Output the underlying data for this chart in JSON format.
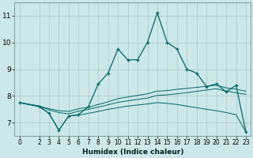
{
  "xlabel": "Humidex (Indice chaleur)",
  "bg_color": "#cce8e8",
  "grid_color": "#b0cccc",
  "line_color": "#006868",
  "xlim": [
    -0.5,
    23.5
  ],
  "ylim": [
    6.5,
    11.5
  ],
  "yticks": [
    7,
    8,
    9,
    10,
    11
  ],
  "xticks": [
    0,
    2,
    3,
    4,
    5,
    6,
    7,
    8,
    9,
    10,
    11,
    12,
    13,
    14,
    15,
    16,
    17,
    18,
    19,
    20,
    21,
    22,
    23
  ],
  "line1_x": [
    0,
    2,
    3,
    4,
    5,
    6,
    7,
    8,
    9,
    10,
    11,
    12,
    13,
    14,
    15,
    16,
    17,
    18,
    19,
    20,
    21,
    22,
    23
  ],
  "line1_y": [
    7.75,
    7.6,
    7.35,
    6.72,
    7.25,
    7.3,
    7.6,
    8.45,
    8.85,
    9.75,
    9.35,
    9.35,
    10.0,
    11.1,
    10.0,
    9.75,
    9.0,
    8.85,
    8.35,
    8.45,
    8.15,
    8.4,
    6.65
  ],
  "line2_x": [
    0,
    2,
    3,
    4,
    5,
    6,
    7,
    8,
    9,
    10,
    11,
    12,
    13,
    14,
    15,
    16,
    17,
    18,
    19,
    20,
    21,
    22,
    23
  ],
  "line2_y": [
    7.75,
    7.62,
    7.52,
    7.45,
    7.42,
    7.52,
    7.58,
    7.68,
    7.78,
    7.9,
    7.96,
    8.02,
    8.08,
    8.18,
    8.2,
    8.25,
    8.28,
    8.32,
    8.36,
    8.4,
    8.3,
    8.25,
    8.18
  ],
  "line3_x": [
    0,
    2,
    3,
    4,
    5,
    6,
    7,
    8,
    9,
    10,
    11,
    12,
    13,
    14,
    15,
    16,
    17,
    18,
    19,
    20,
    21,
    22,
    23
  ],
  "line3_y": [
    7.75,
    7.62,
    7.48,
    7.38,
    7.33,
    7.43,
    7.5,
    7.58,
    7.67,
    7.76,
    7.82,
    7.87,
    7.92,
    8.02,
    8.04,
    8.08,
    8.12,
    8.17,
    8.22,
    8.27,
    8.18,
    8.12,
    8.06
  ],
  "line4_x": [
    0,
    2,
    3,
    4,
    5,
    6,
    7,
    8,
    9,
    10,
    11,
    12,
    13,
    14,
    15,
    16,
    17,
    18,
    19,
    20,
    21,
    22,
    23
  ],
  "line4_y": [
    7.75,
    7.62,
    7.35,
    6.72,
    7.25,
    7.28,
    7.35,
    7.42,
    7.5,
    7.56,
    7.62,
    7.66,
    7.7,
    7.75,
    7.72,
    7.68,
    7.62,
    7.56,
    7.5,
    7.45,
    7.38,
    7.3,
    6.65
  ]
}
